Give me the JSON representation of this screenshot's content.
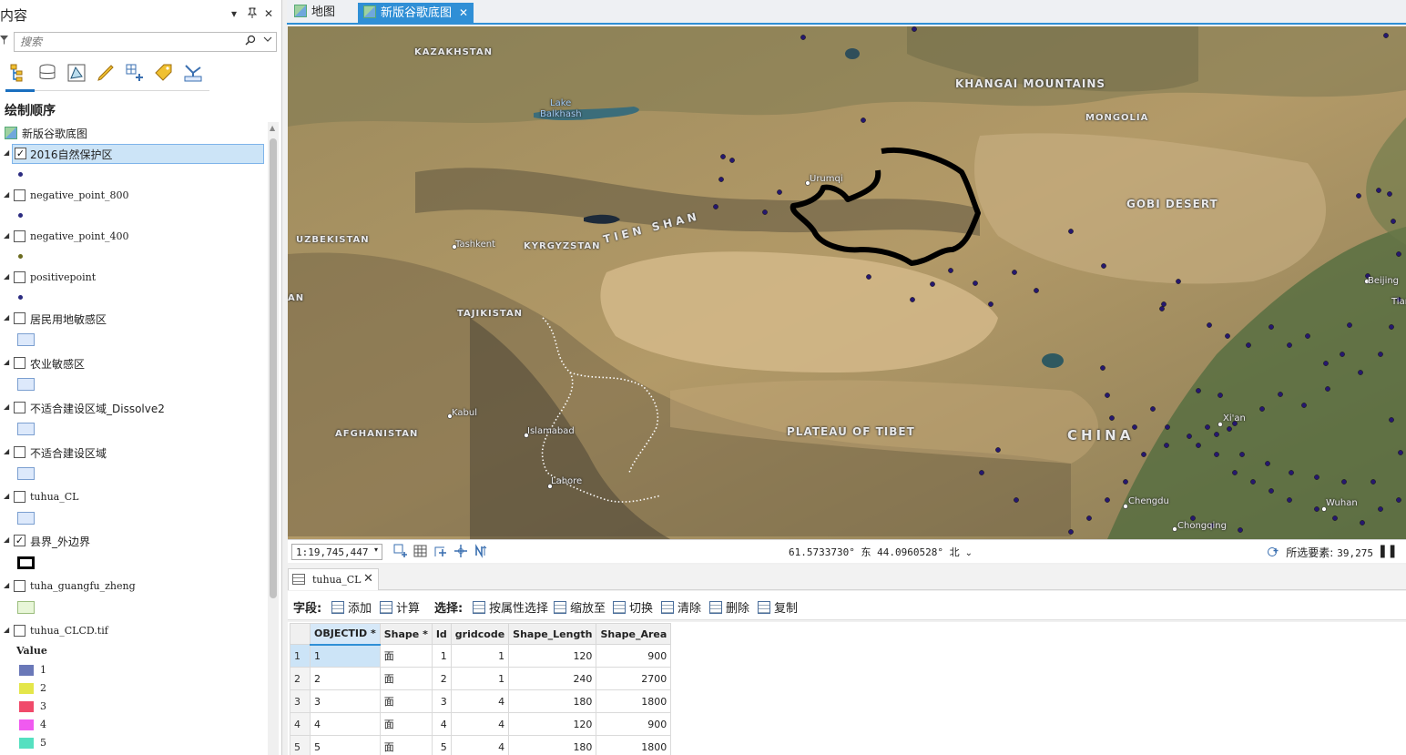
{
  "contents_pane": {
    "title": "内容",
    "controls": {
      "menu": "▾",
      "pin": "ᵖ",
      "close": "✕"
    },
    "search_placeholder": "搜索",
    "section_title": "绘制顺序",
    "basemap_group": "新版谷歌底图",
    "layers": [
      {
        "label": "2016自然保护区",
        "checked": "✓"
      },
      {
        "label": "negative_point_800",
        "checked": ""
      },
      {
        "label": "negative_point_400",
        "checked": ""
      },
      {
        "label": "positivepoint",
        "checked": ""
      },
      {
        "label": "居民用地敏感区",
        "checked": ""
      },
      {
        "label": "农业敏感区",
        "checked": ""
      },
      {
        "label": "不适合建设区域_Dissolve2",
        "checked": ""
      },
      {
        "label": "不适合建设区域",
        "checked": ""
      },
      {
        "label": "tuhua_CL",
        "checked": ""
      },
      {
        "label": "县界_外边界",
        "checked": "✓"
      },
      {
        "label": "tuha_guangfu_zheng",
        "checked": ""
      },
      {
        "label": "tuhua_CLCD.tif",
        "checked": ""
      }
    ],
    "raster_legend": {
      "title": "Value",
      "items": [
        {
          "value": "1",
          "color": "#6a78b8"
        },
        {
          "value": "2",
          "color": "#e4e64a"
        },
        {
          "value": "3",
          "color": "#f04a6a"
        },
        {
          "value": "4",
          "color": "#f05af0"
        },
        {
          "value": "5",
          "color": "#55e0c0"
        }
      ]
    }
  },
  "tabs": [
    {
      "label": "地图",
      "active": false
    },
    {
      "label": "新版谷歌底图",
      "active": true,
      "close": "✕"
    }
  ],
  "map": {
    "labels": {
      "kazakhstan": "KAZAKHSTAN",
      "khangai": "KHANGAI MOUNTAINS",
      "mongolia": "MONGOLIA",
      "lake_1": "Lake",
      "lake_2": "Balkhash",
      "urumqi": "Urumqi",
      "gobi": "GOBI DESERT",
      "tianshan": "TIEN SHAN",
      "uzbekistan": "UZBEKISTAN",
      "tashkent": "Tashkent",
      "kyrgyzstan": "KYRGYZSTAN",
      "beijing": "Beijing",
      "tianjin": "Tianji",
      "an": "AN",
      "tajikistan": "TAJIKISTAN",
      "kabul": "Kabul",
      "islamabad": "Islamabad",
      "afghanistan": "AFGHANISTAN",
      "plateau": "PLATEAU OF TIBET",
      "xian": "Xi'an",
      "china": "CHINA",
      "lahore": "Lahore",
      "chengdu": "Chengdu",
      "wuhan": "Wuhan",
      "chongqing": "Chongqing"
    }
  },
  "status_bar": {
    "scale": "1:19,745,447",
    "scale_dropdown": "▾",
    "coordinates": "61.5733730° 东 44.0960528° 北",
    "coord_dropdown": "⌄",
    "selected_label": "所选要素:",
    "selected_count": "39,275",
    "pause": "❚❚"
  },
  "attribute_table": {
    "tab_label": "tuhua_CL",
    "tab_close": "✕",
    "toolbar": {
      "fields_label": "字段:",
      "add": "添加",
      "calculate": "计算",
      "selection_label": "选择:",
      "select_by_attr": "按属性选择",
      "zoom_to": "缩放至",
      "switch": "切换",
      "clear": "清除",
      "delete": "删除",
      "copy": "复制"
    },
    "columns": [
      "OBJECTID *",
      "Shape *",
      "Id",
      "gridcode",
      "Shape_Length",
      "Shape_Area"
    ],
    "rows": [
      {
        "n": "1",
        "objectid": "1",
        "shape": "面",
        "id": "1",
        "gridcode": "1",
        "length": "120",
        "area": "900"
      },
      {
        "n": "2",
        "objectid": "2",
        "shape": "面",
        "id": "2",
        "gridcode": "1",
        "length": "240",
        "area": "2700"
      },
      {
        "n": "3",
        "objectid": "3",
        "shape": "面",
        "id": "3",
        "gridcode": "4",
        "length": "180",
        "area": "1800"
      },
      {
        "n": "4",
        "objectid": "4",
        "shape": "面",
        "id": "4",
        "gridcode": "4",
        "length": "120",
        "area": "900"
      },
      {
        "n": "5",
        "objectid": "5",
        "shape": "面",
        "id": "5",
        "gridcode": "4",
        "length": "180",
        "area": "1800"
      }
    ]
  }
}
